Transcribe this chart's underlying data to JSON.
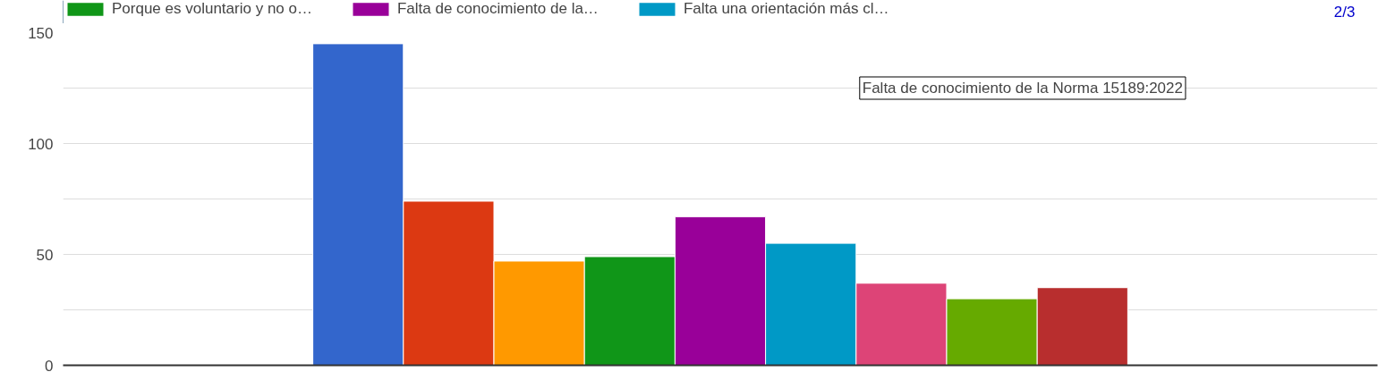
{
  "chart_data": {
    "type": "bar",
    "categories": [
      null
    ],
    "series": [
      {
        "color": "#3366cc",
        "values": [
          145
        ]
      },
      {
        "color": "#dc3912",
        "values": [
          74
        ]
      },
      {
        "color": "#ff9900",
        "values": [
          47
        ]
      },
      {
        "name": "Porque es voluntario y no o…",
        "color": "#109618",
        "values": [
          49
        ]
      },
      {
        "name": "Falta de conocimiento de la…",
        "color": "#990099",
        "values": [
          67
        ]
      },
      {
        "name": "Falta una orientación más cl…",
        "color": "#0099c6",
        "values": [
          55
        ]
      },
      {
        "color": "#dd4477",
        "values": [
          37
        ]
      },
      {
        "color": "#66aa00",
        "values": [
          30
        ]
      },
      {
        "color": "#b82e2e",
        "values": [
          35
        ]
      }
    ],
    "ylim": [
      0,
      150
    ],
    "yticks": [
      0,
      {
        "value": 25,
        "label": null
      },
      50,
      {
        "value": 75,
        "label": null
      },
      100,
      {
        "value": 125,
        "label": null
      },
      150
    ],
    "grid": "y",
    "legend": "top",
    "tick_labels": "y",
    "annotations": [
      "2/3",
      "Falta de conocimiento de la Norma 15189:2022"
    ]
  }
}
